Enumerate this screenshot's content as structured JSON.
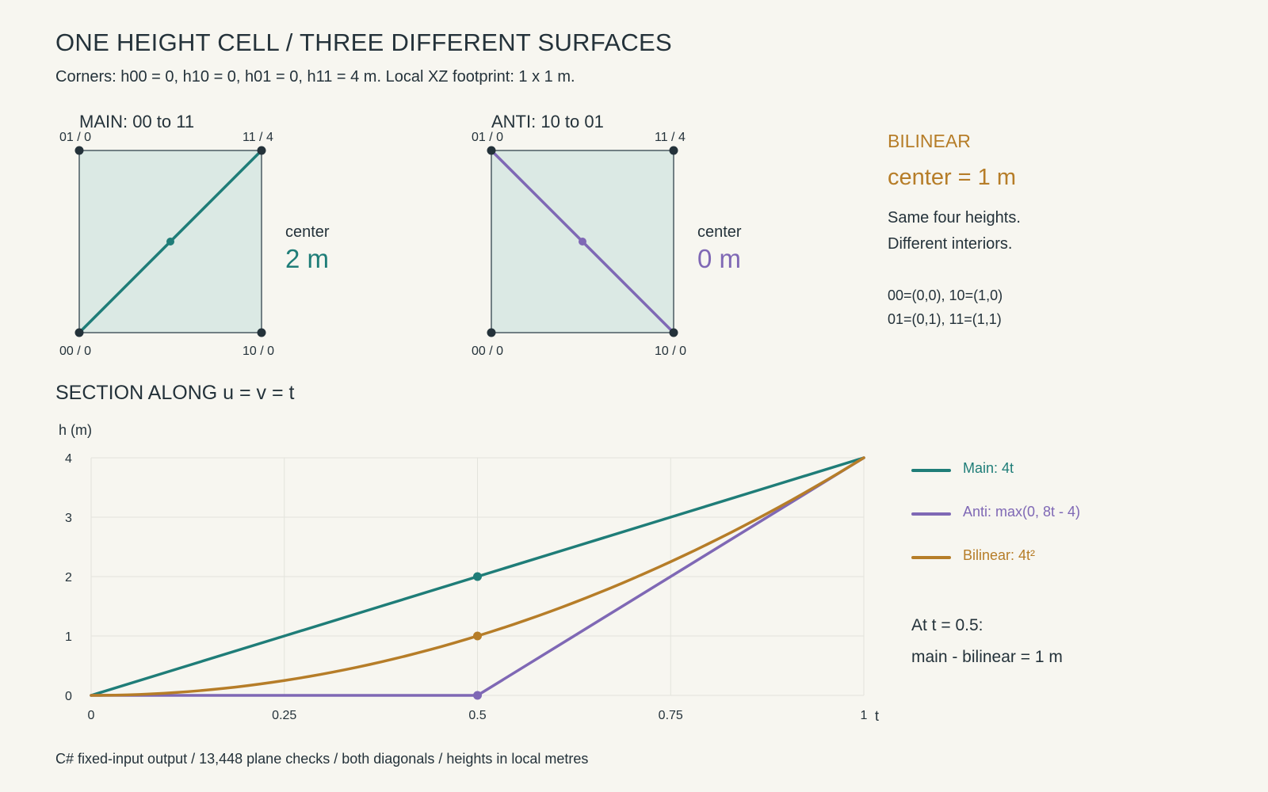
{
  "header": {
    "title": "ONE HEIGHT CELL / THREE DIFFERENT SURFACES",
    "subtitle": "Corners: h00 = 0, h10 = 0, h01 = 0, h11 = 4 m. Local XZ footprint: 1 x 1 m."
  },
  "colors": {
    "main": "#1f7d78",
    "anti": "#7f68b5",
    "bilinear": "#b67d28",
    "cell_fill": "#dbe9e4",
    "ink": "#24323a"
  },
  "panels": [
    {
      "title": "MAIN: 00 to 11",
      "corners": {
        "top_left": "01 / 0",
        "top_right": "11 / 4",
        "bottom_left": "00 / 0",
        "bottom_right": "10 / 0"
      },
      "diagonal": "00-11",
      "center_label": "center",
      "center_value": "2 m"
    },
    {
      "title": "ANTI: 10 to 01",
      "corners": {
        "top_left": "01 / 0",
        "top_right": "11 / 4",
        "bottom_left": "00 / 0",
        "bottom_right": "10 / 0"
      },
      "diagonal": "10-01",
      "center_label": "center",
      "center_value": "0 m"
    }
  ],
  "bilinear": {
    "heading": "BILINEAR",
    "center": "center = 1 m",
    "line1": "Same four heights.",
    "line2": "Different interiors.",
    "coords1": "00=(0,0), 10=(1,0)",
    "coords2": "01=(0,1), 11=(1,1)"
  },
  "section": {
    "title": "SECTION ALONG u = v = t"
  },
  "chart_data": {
    "type": "line",
    "xlabel": "t",
    "ylabel": "h (m)",
    "xlim": [
      0,
      1
    ],
    "ylim": [
      0,
      4
    ],
    "x_ticks": [
      0,
      0.25,
      0.5,
      0.75,
      1
    ],
    "x_tick_labels": [
      "0",
      "0.25",
      "0.5",
      "0.75",
      "1"
    ],
    "y_ticks": [
      0,
      1,
      2,
      3,
      4
    ],
    "y_tick_labels": [
      "0",
      "1",
      "2",
      "3",
      "4"
    ],
    "grid": true,
    "legend_position": "right",
    "x": [
      0,
      0.125,
      0.25,
      0.375,
      0.5,
      0.625,
      0.75,
      0.875,
      1
    ],
    "series": [
      {
        "name": "Main: 4t",
        "color": "#1f7d78",
        "values": [
          0,
          0.5,
          1,
          1.5,
          2,
          2.5,
          3,
          3.5,
          4
        ]
      },
      {
        "name": "Anti: max(0, 8t - 4)",
        "color": "#7f68b5",
        "values": [
          0,
          0,
          0,
          0,
          0,
          1,
          2,
          3,
          4
        ]
      },
      {
        "name": "Bilinear: 4t²",
        "color": "#b67d28",
        "values": [
          0,
          0.0625,
          0.25,
          0.5625,
          1,
          1.5625,
          2.25,
          3.0625,
          4
        ]
      }
    ],
    "markers": [
      {
        "series": 0,
        "x": 0.5,
        "y": 2
      },
      {
        "series": 1,
        "x": 0.5,
        "y": 0
      },
      {
        "series": 2,
        "x": 0.5,
        "y": 1
      }
    ]
  },
  "notes": {
    "line1": "At t = 0.5:",
    "line2": "main - bilinear = 1 m"
  },
  "footer": "C# fixed-input output / 13,448 plane checks / both diagonals / heights in local metres"
}
